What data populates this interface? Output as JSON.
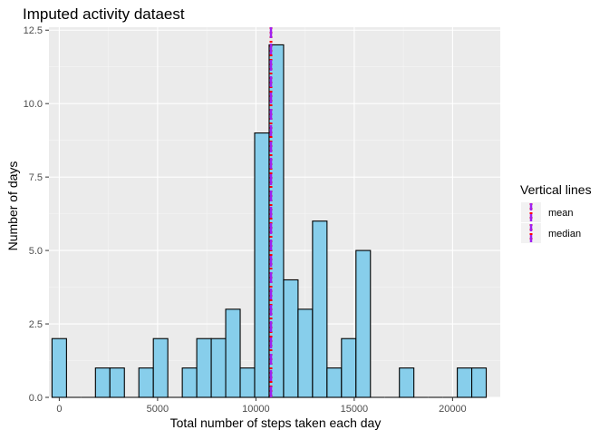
{
  "chart_data": {
    "type": "bar",
    "title": "Imputed activity dataest",
    "xlabel": "Total number of steps taken each day",
    "ylabel": "Number of days",
    "xlim": [
      -525,
      22425
    ],
    "ylim": [
      0,
      12.6
    ],
    "x_ticks": [
      0,
      5000,
      10000,
      15000,
      20000
    ],
    "x_tick_labels": [
      "0",
      "5000",
      "10000",
      "15000",
      "20000"
    ],
    "y_ticks": [
      0,
      2.5,
      5,
      7.5,
      10,
      12.5
    ],
    "y_tick_labels": [
      "0.0",
      "2.5",
      "5.0",
      "7.5",
      "10.0",
      "12.5"
    ],
    "bin_width": 736,
    "bin_centers": [
      0,
      736,
      1472,
      2208,
      2944,
      3680,
      4416,
      5152,
      5888,
      6624,
      7360,
      8096,
      8832,
      9568,
      10304,
      11040,
      11776,
      12512,
      13248,
      13984,
      14720,
      15456,
      16192,
      16928,
      17664,
      18400,
      19136,
      19872,
      20608,
      21344
    ],
    "values": [
      2,
      0,
      0,
      1,
      1,
      0,
      1,
      2,
      0,
      1,
      2,
      2,
      3,
      1,
      9,
      12,
      4,
      3,
      6,
      1,
      2,
      5,
      0,
      0,
      1,
      0,
      0,
      0,
      1,
      1
    ],
    "bar_fill": "#87CEEB",
    "bar_outline": "#000000",
    "vlines": [
      {
        "name": "mean",
        "x": 10766,
        "color": "#FF0000",
        "linetype": "dotted"
      },
      {
        "name": "median",
        "x": 10766,
        "color": "#A020F0",
        "linetype": "dashed"
      }
    ],
    "legend": {
      "title": "Vertical lines",
      "position": "right",
      "entries": [
        "mean",
        "median"
      ]
    },
    "panel_background": "#EBEBEB",
    "grid": true
  }
}
